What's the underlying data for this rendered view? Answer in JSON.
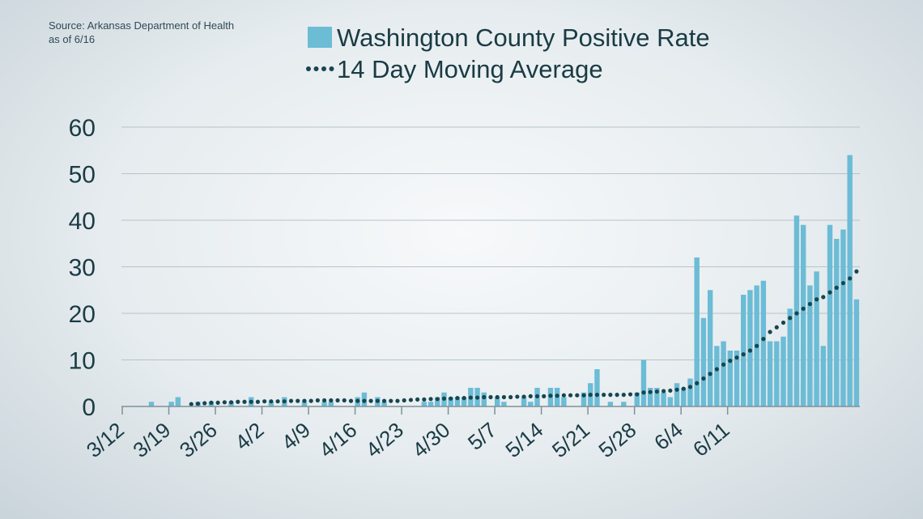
{
  "source_note": {
    "line1": "Source: Arkansas Department of Health",
    "line2": "as of 6/16"
  },
  "colors": {
    "bar": "#6cbcd6",
    "average": "#17464f",
    "text": "#1a3b44",
    "grid": "#b7c3c9"
  },
  "chart_data": {
    "type": "bar",
    "title": "",
    "xlabel": "",
    "ylabel": "",
    "ylim": [
      0,
      60
    ],
    "yticks": [
      0,
      10,
      20,
      30,
      40,
      50,
      60
    ],
    "grid": true,
    "legend_position": "top",
    "x_start_date": "3/12",
    "xticks": [
      "3/12",
      "3/19",
      "3/26",
      "4/2",
      "4/9",
      "4/16",
      "4/23",
      "4/30",
      "5/7",
      "5/14",
      "5/21",
      "5/28",
      "6/4",
      "6/11"
    ],
    "series": [
      {
        "name": "Washington County Positive Rate",
        "type": "bar",
        "values": [
          0,
          0,
          0,
          0,
          1,
          0,
          0,
          1,
          2,
          0,
          0,
          1,
          0,
          1,
          0,
          0,
          1,
          0,
          0,
          2,
          0,
          0,
          1,
          0,
          2,
          0,
          0,
          1,
          0,
          0,
          1,
          1,
          0,
          0,
          0,
          2,
          3,
          0,
          2,
          1,
          0,
          0,
          0,
          0,
          0,
          1,
          1,
          2,
          3,
          2,
          2,
          2,
          4,
          4,
          3,
          0,
          2,
          1,
          0,
          0,
          2,
          1,
          4,
          0,
          4,
          4,
          2,
          0,
          0,
          3,
          5,
          8,
          0,
          1,
          0,
          1,
          0,
          3,
          10,
          4,
          4,
          3,
          2,
          5,
          4,
          6,
          32,
          19,
          25,
          13,
          14,
          12,
          12,
          24,
          25,
          26,
          27,
          14,
          14,
          15,
          21,
          41,
          39,
          26,
          29,
          13,
          39,
          36,
          38,
          54,
          23
        ]
      },
      {
        "name": "14 Day Moving Average",
        "type": "line",
        "style": "dotted",
        "values": [
          null,
          null,
          null,
          null,
          null,
          null,
          null,
          null,
          null,
          null,
          0.5,
          0.6,
          0.7,
          0.8,
          0.8,
          0.9,
          0.9,
          1.0,
          1.0,
          1.0,
          1.0,
          1.1,
          1.1,
          1.1,
          1.1,
          1.2,
          1.2,
          1.2,
          1.2,
          1.3,
          1.3,
          1.3,
          1.3,
          1.3,
          1.2,
          1.2,
          1.2,
          1.2,
          1.2,
          1.2,
          1.2,
          1.2,
          1.3,
          1.4,
          1.5,
          1.5,
          1.6,
          1.6,
          1.7,
          1.7,
          1.8,
          1.8,
          1.9,
          1.9,
          2.0,
          2.0,
          2.0,
          2.0,
          2.0,
          2.1,
          2.1,
          2.2,
          2.2,
          2.2,
          2.3,
          2.3,
          2.4,
          2.4,
          2.4,
          2.4,
          2.5,
          2.5,
          2.5,
          2.5,
          2.5,
          2.5,
          2.6,
          2.6,
          3.0,
          3.1,
          3.2,
          3.3,
          3.4,
          3.6,
          3.8,
          4.2,
          5.0,
          6.0,
          7.0,
          8.0,
          9.0,
          9.8,
          10.5,
          11.2,
          12.0,
          13.0,
          14.5,
          16.0,
          17.0,
          18.0,
          19.0,
          20.0,
          21.0,
          22.0,
          23.0,
          23.5,
          24.5,
          25.5,
          26.5,
          27.5,
          29.0
        ]
      }
    ]
  }
}
